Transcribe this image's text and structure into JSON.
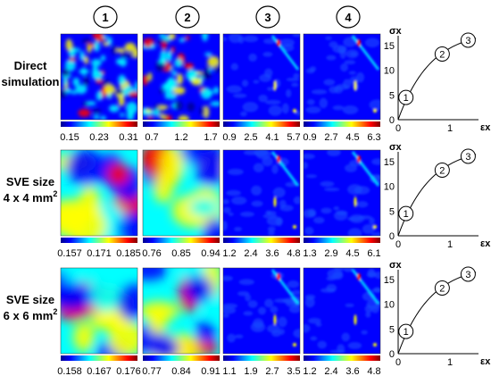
{
  "columns": [
    "1",
    "2",
    "3",
    "4"
  ],
  "rows": [
    {
      "label_lines": [
        "Direct",
        "simulation"
      ],
      "label_sup": "",
      "colorbar_ticks": [
        [
          "0.15",
          "0.23",
          "0.31"
        ],
        [
          "0.7",
          "1.2",
          "1.7"
        ],
        [
          "0.9",
          "2.5",
          "4.1",
          "5.7"
        ],
        [
          "0.9",
          "2.7",
          "4.5",
          "6.3"
        ]
      ],
      "curve": {
        "ylabel": "σx",
        "xlabel": "εx",
        "yticks": [
          "0",
          "5",
          "10",
          "15"
        ],
        "xticks": [
          "0",
          "1"
        ]
      }
    },
    {
      "label_lines": [
        "SVE size",
        "4 x 4 mm"
      ],
      "label_sup": "2",
      "colorbar_ticks": [
        [
          "0.157",
          "0.171",
          "0.185"
        ],
        [
          "0.76",
          "0.85",
          "0.94"
        ],
        [
          "1.2",
          "2.4",
          "3.6",
          "4.8"
        ],
        [
          "1.3",
          "2.9",
          "4.5",
          "6.1"
        ]
      ],
      "curve": {
        "ylabel": "σx",
        "xlabel": "εx",
        "yticks": [
          "0",
          "5",
          "10",
          "15"
        ],
        "xticks": [
          "0",
          "1"
        ]
      }
    },
    {
      "label_lines": [
        "SVE size",
        "6 x 6 mm"
      ],
      "label_sup": "2",
      "colorbar_ticks": [
        [
          "0.158",
          "0.167",
          "0.176"
        ],
        [
          "0.77",
          "0.84",
          "0.91"
        ],
        [
          "1.1",
          "1.9",
          "2.7",
          "3.5"
        ],
        [
          "1.2",
          "2.4",
          "3.6",
          "4.8"
        ]
      ],
      "curve": {
        "ylabel": "σx",
        "xlabel": "εx",
        "yticks": [
          "0",
          "5",
          "10",
          "15"
        ],
        "xticks": [
          "0",
          "1"
        ]
      }
    }
  ],
  "curve_markers": [
    "1",
    "2",
    "3"
  ],
  "colors": {
    "jet_dark_blue": "#00008f",
    "jet_blue": "#0000ff",
    "jet_cyan": "#00ffff",
    "jet_yellow": "#ffff00",
    "jet_red": "#ff0000",
    "jet_dark_red": "#800000"
  }
}
